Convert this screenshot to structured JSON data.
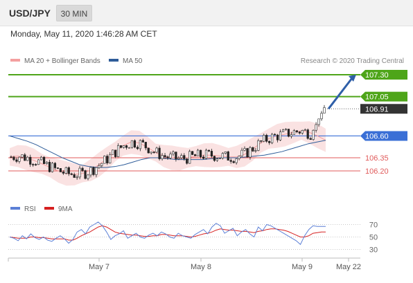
{
  "header": {
    "symbol": "USD/JPY",
    "timeframe": "30 MIN",
    "timestamp": "Monday, May 11, 2020 1:46:28 AM CET"
  },
  "legend": {
    "ma20_label": "MA 20 + Bollinger Bands",
    "ma50_label": "MA 50",
    "credit": "Research © 2020 Trading Central",
    "ma20_color": "#f4a0a0",
    "ma50_color": "#2e5c99"
  },
  "rsi_legend": {
    "rsi_label": "RSI",
    "ma_label": "9MA",
    "rsi_color": "#5b7fd6",
    "ma_color": "#d62020"
  },
  "colors": {
    "resistance": "#4ea519",
    "pivot": "#3a6fd6",
    "support": "#e05a5a",
    "current": "#333333",
    "arrow": "#2f5fa8"
  },
  "chart_data": [
    {
      "type": "candlestick",
      "ylim": [
        106.06,
        107.42
      ],
      "x_ticks": [
        "May 7",
        "May 8",
        "May 9",
        "May 22"
      ],
      "levels": [
        {
          "label": "107.30",
          "value": 107.3,
          "kind": "resistance"
        },
        {
          "label": "107.05",
          "value": 107.05,
          "kind": "resistance"
        },
        {
          "label": "106.91",
          "value": 106.91,
          "kind": "current"
        },
        {
          "label": "106.60",
          "value": 106.6,
          "kind": "pivot"
        },
        {
          "label": "106.35",
          "value": 106.35,
          "kind": "support"
        },
        {
          "label": "106.20",
          "value": 106.2,
          "kind": "support"
        }
      ],
      "forecast_arrow": {
        "from": 106.91,
        "to": 107.3
      },
      "series": [
        {
          "name": "MA 20 + Bollinger Bands",
          "values": [
            106.36,
            106.37,
            106.35,
            106.32,
            106.28,
            106.24,
            106.2,
            106.17,
            106.16,
            106.17,
            106.21,
            106.27,
            106.34,
            106.42,
            106.49,
            106.53,
            106.52,
            106.47,
            106.41,
            106.37,
            106.35,
            106.34,
            106.35,
            106.37,
            106.38,
            106.38,
            106.37,
            106.36,
            106.36,
            106.39,
            106.45,
            106.52,
            106.57,
            106.6,
            106.62,
            106.64,
            106.66,
            106.64,
            106.6,
            106.55
          ]
        },
        {
          "name": "MA 50",
          "values": [
            106.6,
            106.57,
            106.54,
            106.5,
            106.45,
            106.4,
            106.35,
            106.31,
            106.27,
            106.25,
            106.24,
            106.24,
            106.25,
            106.27,
            106.3,
            106.33,
            106.35,
            106.35,
            106.34,
            106.33,
            106.33,
            106.33,
            106.33,
            106.34,
            106.35,
            106.35,
            106.35,
            106.36,
            106.37,
            106.38,
            106.4,
            106.42,
            106.45,
            106.48,
            106.51,
            106.53,
            106.55
          ]
        }
      ]
    },
    {
      "type": "line",
      "title": "RSI",
      "ylim": [
        20,
        80
      ],
      "y_ticks": [
        70,
        50,
        30
      ],
      "series": [
        {
          "name": "RSI",
          "values": [
            50,
            48,
            44,
            52,
            47,
            55,
            49,
            46,
            50,
            45,
            43,
            48,
            52,
            47,
            40,
            46,
            58,
            62,
            55,
            66,
            70,
            74,
            68,
            58,
            46,
            52,
            55,
            60,
            48,
            52,
            56,
            50,
            48,
            53,
            56,
            52,
            58,
            55,
            50,
            48,
            56,
            52,
            50,
            48,
            54,
            58,
            62,
            55,
            66,
            72,
            68,
            56,
            60,
            64,
            52,
            58,
            62,
            55,
            50,
            66,
            60,
            70,
            68,
            64,
            60,
            56,
            52,
            48,
            44,
            38,
            52,
            62,
            68,
            67,
            67,
            67
          ]
        },
        {
          "name": "9MA",
          "values": [
            50,
            49,
            48,
            48,
            48,
            50,
            50,
            49,
            49,
            48,
            47,
            47,
            47,
            47,
            45,
            45,
            48,
            52,
            55,
            58,
            62,
            66,
            68,
            66,
            62,
            58,
            56,
            55,
            54,
            53,
            53,
            52,
            51,
            51,
            52,
            52,
            54,
            54,
            53,
            52,
            52,
            52,
            51,
            50,
            51,
            53,
            55,
            56,
            58,
            61,
            63,
            62,
            61,
            61,
            60,
            59,
            59,
            58,
            57,
            59,
            60,
            62,
            63,
            63,
            62,
            61,
            59,
            56,
            53,
            50,
            50,
            52,
            56,
            57,
            58,
            58
          ]
        }
      ]
    }
  ]
}
